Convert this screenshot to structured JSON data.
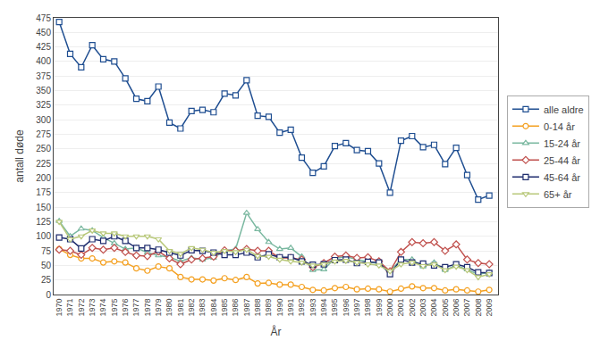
{
  "chart_data": {
    "type": "line",
    "xlabel": "År",
    "ylabel": "antall døde",
    "x": [
      1970,
      1971,
      1972,
      1973,
      1974,
      1975,
      1976,
      1977,
      1978,
      1979,
      1980,
      1981,
      1982,
      1983,
      1984,
      1985,
      1986,
      1987,
      1988,
      1989,
      1990,
      1991,
      1992,
      1993,
      1994,
      1995,
      1996,
      1997,
      1998,
      1999,
      2000,
      2001,
      2002,
      2003,
      2004,
      2005,
      2006,
      2007,
      2008,
      2009
    ],
    "xlim": [
      1969.5,
      2009.8
    ],
    "xticks": [
      1970,
      1971,
      1972,
      1973,
      1974,
      1975,
      1976,
      1977,
      1978,
      1979,
      1980,
      1981,
      1982,
      1983,
      1984,
      1985,
      1986,
      1987,
      1988,
      1989,
      1990,
      1991,
      1992,
      1993,
      1994,
      1995,
      1996,
      1997,
      1998,
      1999,
      2000,
      2001,
      2002,
      2003,
      2004,
      2005,
      2006,
      2007,
      2008,
      2009
    ],
    "ylim": [
      0,
      475
    ],
    "yticks": [
      0,
      25,
      50,
      75,
      100,
      125,
      150,
      175,
      200,
      225,
      250,
      275,
      300,
      325,
      350,
      375,
      400,
      425,
      450,
      475
    ],
    "grid": true,
    "legend": "right",
    "series": [
      {
        "name": "alle aldre",
        "color": "#1f4e91",
        "marker": "square",
        "values": [
          468,
          413,
          390,
          428,
          404,
          400,
          371,
          336,
          332,
          357,
          295,
          285,
          315,
          317,
          313,
          345,
          342,
          368,
          307,
          305,
          278,
          283,
          235,
          209,
          220,
          255,
          260,
          248,
          246,
          225,
          175,
          264,
          272,
          253,
          257,
          224,
          252,
          205,
          163,
          170
        ]
      },
      {
        "name": "0-14 år",
        "color": "#f4a020",
        "marker": "circle",
        "values": [
          78,
          68,
          62,
          62,
          55,
          57,
          55,
          45,
          41,
          48,
          45,
          30,
          26,
          26,
          24,
          28,
          25,
          30,
          19,
          20,
          17,
          17,
          13,
          8,
          7,
          11,
          13,
          9,
          10,
          9,
          5,
          10,
          14,
          11,
          11,
          7,
          9,
          7,
          5,
          8
        ]
      },
      {
        "name": "15-24 år",
        "color": "#7ab8a0",
        "marker": "triangle-up",
        "values": [
          126,
          100,
          113,
          110,
          98,
          88,
          78,
          80,
          72,
          67,
          64,
          57,
          63,
          60,
          63,
          75,
          78,
          140,
          112,
          90,
          78,
          80,
          65,
          42,
          43,
          62,
          65,
          60,
          57,
          53,
          40,
          60,
          60,
          48,
          55,
          42,
          50,
          43,
          35,
          38
        ]
      },
      {
        "name": "25-44 år",
        "color": "#c0504d",
        "marker": "diamond",
        "values": [
          77,
          75,
          68,
          80,
          77,
          80,
          73,
          67,
          66,
          74,
          62,
          52,
          60,
          62,
          65,
          76,
          75,
          78,
          75,
          75,
          63,
          63,
          60,
          47,
          54,
          65,
          67,
          63,
          64,
          57,
          40,
          73,
          90,
          88,
          90,
          75,
          86,
          60,
          54,
          52
        ]
      },
      {
        "name": "45-64 år",
        "color": "#1f2d6e",
        "marker": "square",
        "values": [
          98,
          95,
          79,
          95,
          92,
          100,
          92,
          80,
          80,
          77,
          72,
          67,
          76,
          75,
          72,
          68,
          68,
          72,
          64,
          69,
          64,
          64,
          57,
          51,
          52,
          59,
          60,
          54,
          56,
          55,
          35,
          60,
          55,
          53,
          50,
          47,
          52,
          47,
          38,
          37
        ]
      },
      {
        "name": "65+ år",
        "color": "#b8c87a",
        "marker": "triangle-down",
        "values": [
          125,
          95,
          100,
          110,
          105,
          105,
          100,
          100,
          100,
          95,
          75,
          70,
          80,
          77,
          72,
          75,
          73,
          77,
          66,
          65,
          60,
          57,
          55,
          50,
          52,
          57,
          58,
          55,
          52,
          50,
          40,
          52,
          55,
          49,
          52,
          42,
          48,
          42,
          30,
          35
        ]
      }
    ]
  }
}
